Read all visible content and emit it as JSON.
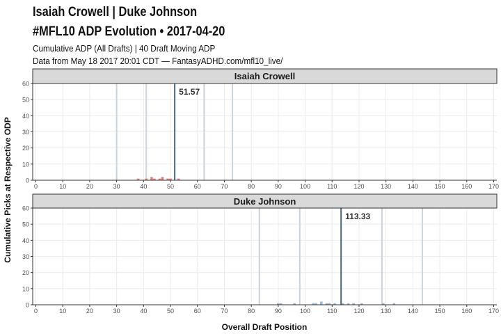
{
  "header": {
    "title_line1": "Isaiah Crowell | Duke Johnson",
    "title_line2": "#MFL10 ADP Evolution • 2017-04-20",
    "subtitle_line1": "Cumulative ADP (All Drafts) | 40 Draft Moving ADP",
    "subtitle_line2": "Data from May 18 2017 20:01 CDT — FantasyADHD.com/mfl10_live/"
  },
  "chart_data": {
    "type": "bar",
    "xlabel": "Overall Draft Position",
    "ylabel": "Cumulative Picks at Respective ODP",
    "xlim": [
      0,
      170
    ],
    "ylim": [
      0,
      60
    ],
    "x_ticks": [
      0,
      10,
      20,
      30,
      40,
      50,
      60,
      70,
      80,
      90,
      100,
      110,
      120,
      130,
      140,
      150,
      160,
      170
    ],
    "y_ticks": [
      0,
      10,
      20,
      30,
      40,
      50,
      60
    ],
    "grid": true,
    "panels": [
      {
        "name": "Isaiah Crowell",
        "bar_color": "#e08080",
        "adp": 51.57,
        "adp_label": "51.57",
        "reference_lines": [
          30,
          41,
          62.5,
          73
        ],
        "bars": [
          {
            "x": 38,
            "y": 1
          },
          {
            "x": 41,
            "y": 1
          },
          {
            "x": 43,
            "y": 2
          },
          {
            "x": 44,
            "y": 1
          },
          {
            "x": 46,
            "y": 1
          },
          {
            "x": 47,
            "y": 2
          },
          {
            "x": 49,
            "y": 1
          },
          {
            "x": 50,
            "y": 1
          },
          {
            "x": 53,
            "y": 1
          }
        ]
      },
      {
        "name": "Duke Johnson",
        "bar_color": "#9fb8d6",
        "adp": 113.33,
        "adp_label": "113.33",
        "reference_lines": [
          83,
          98,
          128.5,
          143.5
        ],
        "bars": [
          {
            "x": 90,
            "y": 1
          },
          {
            "x": 91,
            "y": 1
          },
          {
            "x": 96,
            "y": 1
          },
          {
            "x": 103,
            "y": 1
          },
          {
            "x": 104,
            "y": 1
          },
          {
            "x": 106,
            "y": 2
          },
          {
            "x": 108,
            "y": 1
          },
          {
            "x": 109,
            "y": 1
          },
          {
            "x": 111,
            "y": 1
          },
          {
            "x": 114,
            "y": 1
          },
          {
            "x": 116,
            "y": 1
          },
          {
            "x": 118,
            "y": 1
          },
          {
            "x": 121,
            "y": 1
          },
          {
            "x": 129,
            "y": 1
          },
          {
            "x": 133,
            "y": 1
          }
        ]
      }
    ]
  }
}
